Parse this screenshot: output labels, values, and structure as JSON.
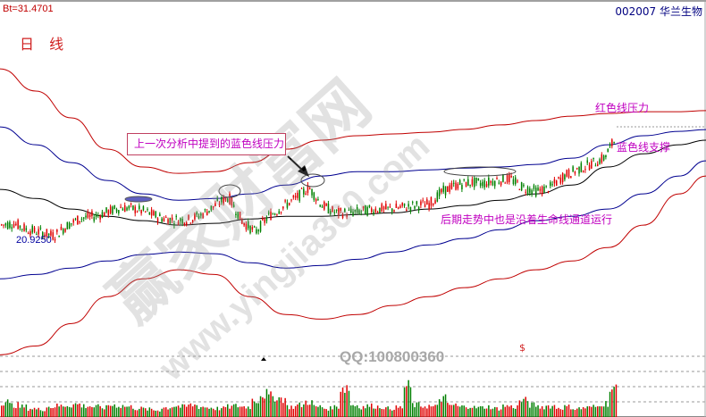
{
  "header": {
    "bt_value": "Bt=31.4701",
    "stock_code_name": "002007  华兰生物",
    "period": "日 线",
    "low_label": "20.9250"
  },
  "annotations": {
    "box_text": "上一次分析中提到的蓝色线压力",
    "red_pressure": "红色线压力",
    "blue_support": "蓝色线支撑",
    "trend_note": "后期走势中也是沿着生命线通道运行"
  },
  "footer": {
    "qq": "QQ:100800360",
    "marker": "$"
  },
  "watermark": {
    "text_cn": "赢家财富网",
    "text_url": "www.yingjia360.com"
  },
  "colors": {
    "up": "#e00000",
    "down": "#008000",
    "red_band": "#c00000",
    "blue_band": "#000090",
    "mid_line": "#000000",
    "annotation": "#c000c0"
  },
  "chart_data": {
    "type": "candlestick",
    "ymax": 31.4701,
    "low_marker": 20.925,
    "line_series": [
      {
        "key": "red_upper",
        "color": "#c00000",
        "values": [
          28.75,
          27.74,
          26.52,
          25.1,
          24.29,
          24.0,
          24.08,
          24.49,
          25.1,
          25.51,
          25.71,
          25.79,
          25.87,
          26.0,
          26.2,
          26.4,
          26.6,
          26.72,
          26.8,
          26.8,
          26.85
        ]
      },
      {
        "key": "blue_upper",
        "color": "#000090",
        "values": [
          26.11,
          25.3,
          24.49,
          23.68,
          23.07,
          22.78,
          22.86,
          23.07,
          23.47,
          23.88,
          24.08,
          24.08,
          24.16,
          24.24,
          24.29,
          24.41,
          24.69,
          25.3,
          25.71,
          25.91,
          25.99
        ]
      },
      {
        "key": "life_line",
        "color": "#000000",
        "values": [
          23.27,
          22.86,
          22.38,
          22.05,
          21.85,
          21.65,
          21.73,
          21.93,
          22.05,
          22.05,
          22.13,
          22.21,
          22.38,
          22.54,
          22.78,
          23.07,
          23.47,
          24.29,
          24.89,
          25.3,
          25.51
        ]
      },
      {
        "key": "blue_lower",
        "color": "#000090",
        "values": [
          19.21,
          19.41,
          19.7,
          20.02,
          20.31,
          20.43,
          20.35,
          19.94,
          19.7,
          19.82,
          20.1,
          20.43,
          20.75,
          21.04,
          21.44,
          21.85,
          22.05,
          22.38,
          23.07,
          23.88,
          24.57
        ]
      },
      {
        "key": "red_lower",
        "color": "#c00000",
        "values": [
          15.76,
          16.16,
          17.18,
          18.4,
          19.21,
          19.62,
          19.41,
          18.4,
          17.59,
          17.38,
          17.59,
          18.0,
          18.4,
          18.81,
          19.21,
          19.62,
          20.02,
          20.63,
          21.65,
          23.07,
          23.88
        ]
      }
    ],
    "close_trend": [
      21.65,
      21.73,
      21.44,
      21.32,
      21.16,
      21.65,
      21.97,
      22.05,
      22.25,
      22.46,
      22.38,
      22.21,
      21.97,
      21.89,
      21.89,
      22.13,
      22.54,
      22.94,
      21.85,
      21.32,
      22.05,
      22.46,
      22.86,
      23.35,
      22.54,
      22.21,
      22.21,
      22.29,
      22.38,
      22.38,
      22.46,
      22.54,
      22.62,
      23.19,
      23.47,
      23.59,
      23.55,
      23.68,
      23.76,
      23.35,
      23.19,
      23.35,
      23.88,
      24.16,
      24.41,
      24.69,
      25.71
    ],
    "volume_trend": [
      18,
      14,
      12,
      10,
      9,
      12,
      13,
      14,
      15,
      13,
      12,
      11,
      14,
      13,
      12,
      10,
      9,
      8,
      11,
      13,
      12,
      14,
      12,
      11,
      10,
      12,
      13,
      12,
      20,
      27,
      24,
      22,
      12,
      14,
      18,
      12,
      10,
      12,
      35,
      14,
      12,
      13,
      12,
      10,
      11,
      35,
      14,
      13,
      12,
      22,
      14,
      12,
      13,
      11,
      12,
      10,
      13,
      12,
      19,
      14,
      12,
      13,
      11,
      12,
      10,
      11,
      12,
      16,
      32,
      22
    ]
  }
}
